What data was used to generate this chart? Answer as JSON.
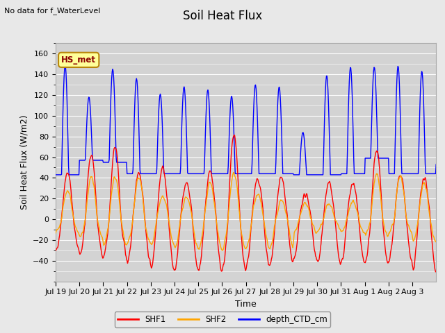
{
  "title": "Soil Heat Flux",
  "top_left_text": "No data for f_WaterLevel",
  "ylabel": "Soil Heat Flux (W/m2)",
  "xlabel": "Time",
  "ylim": [
    -60,
    170
  ],
  "yticks": [
    -40,
    -20,
    0,
    20,
    40,
    60,
    80,
    100,
    120,
    140,
    160
  ],
  "background_color": "#e8e8e8",
  "plot_bg_color": "#d3d3d3",
  "legend_entries": [
    "SHF1",
    "SHF2",
    "depth_CTD_cm"
  ],
  "legend_colors": [
    "#ff0000",
    "#ffa500",
    "#0000ff"
  ],
  "hs_met_box_facecolor": "#ffff99",
  "hs_met_text_color": "#8b0000",
  "hs_met_edge_color": "#b8860b",
  "x_tick_labels": [
    "Jul 19",
    "Jul 20",
    "Jul 21",
    "Jul 22",
    "Jul 23",
    "Jul 24",
    "Jul 25",
    "Jul 26",
    "Jul 27",
    "Jul 28",
    "Jul 29",
    "Jul 30",
    "Jul 31",
    "Aug 1",
    "Aug 2",
    "Aug 3"
  ],
  "n_days": 16
}
